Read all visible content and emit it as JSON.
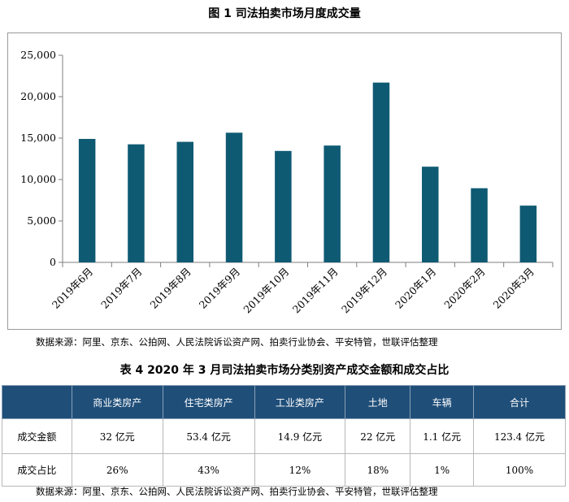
{
  "figure_title": "图 1 司法拍卖市场月度成交量",
  "chart_data": {
    "type": "bar",
    "title": "图 1 司法拍卖市场月度成交量",
    "categories": [
      "2019年6月",
      "2019年7月",
      "2019年8月",
      "2019年9月",
      "2019年10月",
      "2019年11月",
      "2019年12月",
      "2020年1月",
      "2020年2月",
      "2020年3月"
    ],
    "values": [
      14900,
      14250,
      14550,
      15650,
      13450,
      14100,
      21700,
      11550,
      8950,
      6850
    ],
    "ylim": [
      0,
      25000
    ],
    "yticks": [
      0,
      5000,
      10000,
      15000,
      20000,
      25000
    ],
    "ytick_labels": [
      "0",
      "5,000",
      "10,000",
      "15,000",
      "20,000",
      "25,000"
    ],
    "bar_color": "#0f5a73",
    "grid": false,
    "legend": "none"
  },
  "source_note_1": "数据来源：阿里、京东、公拍网、人民法院诉讼资产网、拍卖行业协会、平安特管，世联评估整理",
  "table": {
    "title": "表 4 2020 年 3 月司法拍卖市场分类别资产成交金额和成交占比",
    "header": [
      "",
      "商业类房产",
      "住宅类房产",
      "工业类房产",
      "土地",
      "车辆",
      "合计"
    ],
    "rows": [
      [
        "成交金额",
        "32 亿元",
        "53.4 亿元",
        "14.9 亿元",
        "22 亿元",
        "1.1 亿元",
        "123.4 亿元"
      ],
      [
        "成交占比",
        "26%",
        "43%",
        "12%",
        "18%",
        "1%",
        "100%"
      ]
    ],
    "header_color": "#1f4e79"
  },
  "source_note_2": "数据来源：阿里、京东、公拍网、人民法院诉讼资产网、拍卖行业协会、平安特管，世联评估整理"
}
